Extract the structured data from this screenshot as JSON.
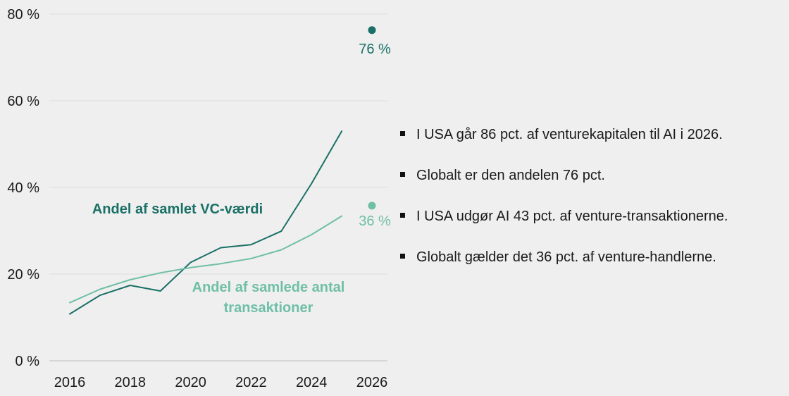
{
  "chart_data": {
    "type": "line",
    "x": [
      2016,
      2017,
      2018,
      2019,
      2020,
      2021,
      2022,
      2023,
      2024,
      2025
    ],
    "series": [
      {
        "name": "Andel af samlet VC-værdi",
        "color": "#1a7066",
        "values": [
          10.8,
          15.1,
          17.4,
          16.1,
          22.7,
          26.1,
          26.8,
          29.9,
          40.9,
          53.0
        ]
      },
      {
        "name": "Andel af samlede antal transaktioner",
        "color": "#6fbfa6",
        "values": [
          13.4,
          16.5,
          18.7,
          20.3,
          21.5,
          22.4,
          23.6,
          25.6,
          29.1,
          33.4
        ]
      }
    ],
    "points": [
      {
        "x": 2026,
        "value": 76.3,
        "label": "76 %",
        "color": "#1a7066"
      },
      {
        "x": 2026,
        "value": 35.8,
        "label": "36 %",
        "color": "#6fbfa6"
      }
    ],
    "series_labels": [
      {
        "lines": [
          "Andel af samlet VC-værdi"
        ],
        "color": "#1a7066"
      },
      {
        "lines": [
          "Andel af samlede antal",
          "transaktioner"
        ],
        "color": "#6fbfa6"
      }
    ],
    "x_ticks": [
      "2016",
      "2018",
      "2020",
      "2022",
      "2024",
      "2026"
    ],
    "y_ticks": [
      "0 %",
      "20 %",
      "40 %",
      "60 %",
      "80 %"
    ],
    "xlim": [
      2016,
      2026
    ],
    "ylim": [
      0,
      80
    ],
    "title": "",
    "xlabel": "",
    "ylabel": "",
    "grid": true,
    "legend": "inline labels"
  },
  "bullets": [
    "I USA går 86 pct. af venturekapitalen til AI i 2026.",
    "Globalt er den andelen 76 pct.",
    "I USA udgør AI 43 pct. af venture-transaktionerne.",
    "Globalt gælder det 36 pct. af venture-handlerne."
  ]
}
